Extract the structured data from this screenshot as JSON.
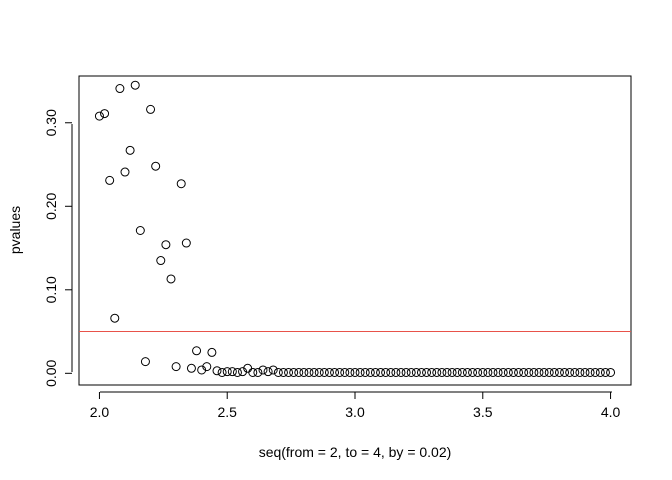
{
  "chart_data": {
    "type": "scatter",
    "title": "",
    "xlabel": "seq(from = 2, to = 4, by = 0.02)",
    "ylabel": "pvalues",
    "xlim": [
      1.92,
      4.08
    ],
    "ylim": [
      -0.014,
      0.356
    ],
    "x_ticks": [
      2.0,
      2.5,
      3.0,
      3.5,
      4.0
    ],
    "x_tick_labels": [
      "2.0",
      "2.5",
      "3.0",
      "3.5",
      "4.0"
    ],
    "y_ticks": [
      0.0,
      0.1,
      0.2,
      0.3
    ],
    "y_tick_labels": [
      "0.00",
      "0.10",
      "0.20",
      "0.30"
    ],
    "reference_line": {
      "y": 0.05,
      "color": "#e8524a"
    },
    "grid": false,
    "series": [
      {
        "x_start": 2.0,
        "x_step": 0.02,
        "values": [
          0.308,
          0.311,
          0.231,
          0.066,
          0.341,
          0.241,
          0.267,
          0.345,
          0.171,
          0.014,
          0.316,
          0.248,
          0.135,
          0.154,
          0.113,
          0.008,
          0.227,
          0.156,
          0.006,
          0.027,
          0.004,
          0.008,
          0.025,
          0.003,
          0.001,
          0.002,
          0.002,
          0.001,
          0.002,
          0.006,
          0.001,
          0.001,
          0.004,
          0.002,
          0.004,
          0.001,
          0.001,
          0.001,
          0.001,
          0.001,
          0.001,
          0.001,
          0.001,
          0.001,
          0.001,
          0.001,
          0.001,
          0.001,
          0.001,
          0.001,
          0.001,
          0.001,
          0.001,
          0.001,
          0.001,
          0.001,
          0.001,
          0.001,
          0.001,
          0.001,
          0.001,
          0.001,
          0.001,
          0.001,
          0.001,
          0.001,
          0.001,
          0.001,
          0.001,
          0.001,
          0.001,
          0.001,
          0.001,
          0.001,
          0.001,
          0.001,
          0.001,
          0.001,
          0.001,
          0.001,
          0.001,
          0.001,
          0.001,
          0.001,
          0.001,
          0.001,
          0.001,
          0.001,
          0.001,
          0.001,
          0.001,
          0.001,
          0.001,
          0.001,
          0.001,
          0.001,
          0.001,
          0.001,
          0.001,
          0.001,
          0.001
        ]
      }
    ]
  }
}
